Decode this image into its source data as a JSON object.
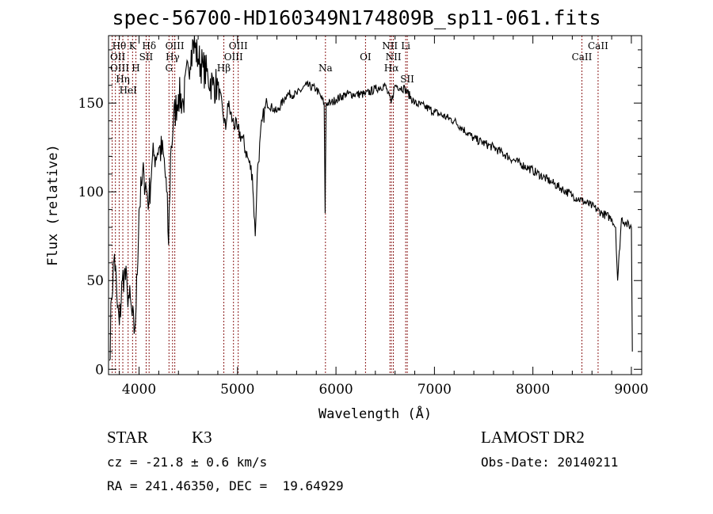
{
  "chart_data": {
    "type": "line",
    "title": "spec-56700-HD160349N174809B_sp11-061.fits",
    "xlabel": "Wavelength (Å)",
    "ylabel": "Flux (relative)",
    "xlim": [
      3690,
      9105
    ],
    "ylim": [
      -3,
      188
    ],
    "xticks": [
      4000,
      5000,
      6000,
      7000,
      8000,
      9000
    ],
    "yticks": [
      0,
      50,
      100,
      150
    ],
    "grid": false,
    "series": [
      {
        "name": "spectrum",
        "x": [
          3700,
          3720,
          3750,
          3780,
          3800,
          3830,
          3850,
          3880,
          3900,
          3930,
          3950,
          3970,
          4000,
          4030,
          4050,
          4080,
          4100,
          4130,
          4150,
          4200,
          4250,
          4280,
          4300,
          4320,
          4350,
          4400,
          4450,
          4500,
          4530,
          4550,
          4600,
          4650,
          4700,
          4750,
          4800,
          4850,
          4880,
          4900,
          4950,
          5000,
          5050,
          5100,
          5150,
          5180,
          5200,
          5250,
          5300,
          5400,
          5500,
          5600,
          5700,
          5800,
          5880,
          5890,
          5900,
          5950,
          6000,
          6100,
          6200,
          6300,
          6400,
          6500,
          6560,
          6600,
          6700,
          6800,
          6900,
          7000,
          7200,
          7400,
          7600,
          7800,
          8000,
          8200,
          8400,
          8500,
          8600,
          8700,
          8800,
          8840,
          8860,
          8900,
          8950,
          9000,
          9010
        ],
        "y": [
          5,
          40,
          65,
          35,
          25,
          50,
          55,
          45,
          40,
          30,
          20,
          35,
          90,
          105,
          110,
          100,
          95,
          115,
          120,
          125,
          120,
          100,
          70,
          120,
          140,
          155,
          150,
          170,
          180,
          185,
          175,
          170,
          165,
          160,
          160,
          145,
          135,
          150,
          140,
          135,
          130,
          120,
          110,
          75,
          110,
          140,
          150,
          145,
          155,
          155,
          160,
          158,
          150,
          88,
          150,
          150,
          152,
          155,
          155,
          155,
          158,
          160,
          150,
          160,
          158,
          150,
          148,
          145,
          140,
          130,
          125,
          118,
          112,
          105,
          98,
          95,
          92,
          88,
          85,
          80,
          50,
          85,
          82,
          80,
          10
        ]
      }
    ],
    "lines": [
      {
        "label": "OII",
        "x": 3727,
        "row": 1
      },
      {
        "label": "OIII",
        "x": 3760,
        "row": 2
      },
      {
        "label": "Hθ",
        "x": 3798,
        "row": 0
      },
      {
        "label": "Hη",
        "x": 3835,
        "row": 2
      },
      {
        "label": "HeI",
        "x": 3889,
        "row": 1
      },
      {
        "label": "K",
        "x": 3934,
        "row": 0
      },
      {
        "label": "H",
        "x": 3968,
        "row": 2
      },
      {
        "label": "SII",
        "x": 4072,
        "row": 1
      },
      {
        "label": "Hδ",
        "x": 4102,
        "row": 0
      },
      {
        "label": "G",
        "x": 4304,
        "row": 2
      },
      {
        "label": "Hγ",
        "x": 4340,
        "row": 1
      },
      {
        "label": "OIII",
        "x": 4363,
        "row": 0
      },
      {
        "label": "Hβ",
        "x": 4861,
        "row": 2
      },
      {
        "label": "OIII",
        "x": 4959,
        "row": 1
      },
      {
        "label": "OIII",
        "x": 5007,
        "row": 0
      },
      {
        "label": "Na",
        "x": 5893,
        "row": 2
      },
      {
        "label": "OI",
        "x": 6300,
        "row": 1
      },
      {
        "label": "NII",
        "x": 6548,
        "row": 0
      },
      {
        "label": "Hα",
        "x": 6563,
        "row": 2
      },
      {
        "label": "NII",
        "x": 6583,
        "row": 1
      },
      {
        "label": "Li",
        "x": 6708,
        "row": 0
      },
      {
        "label": "SII",
        "x": 6724,
        "row": 2
      },
      {
        "label": "CaII",
        "x": 8498,
        "row": 1
      },
      {
        "label": "CaII",
        "x": 8662,
        "row": 0
      }
    ],
    "line_color": "#8b1a1a"
  },
  "info": {
    "class": "STAR",
    "subclass": "K3",
    "survey": "LAMOST DR2",
    "cz": "cz = -21.8 ± 0.6 km/s",
    "obs_date": "Obs-Date: 20140211",
    "coords": "RA = 241.46350, DEC =  19.64929"
  }
}
